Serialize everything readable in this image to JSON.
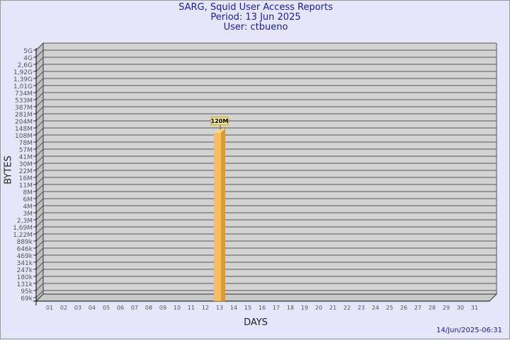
{
  "chart_data": {
    "type": "bar",
    "title": "SARG, Squid User Access Reports",
    "subtitle": [
      "Period: 13 Jun 2025",
      "User: ctbueno"
    ],
    "xlabel": "DAYS",
    "ylabel": "BYTES",
    "scale": "log",
    "grid": true,
    "categories": [
      "01",
      "02",
      "03",
      "04",
      "05",
      "06",
      "07",
      "08",
      "09",
      "10",
      "11",
      "12",
      "13",
      "14",
      "15",
      "16",
      "17",
      "18",
      "19",
      "20",
      "21",
      "22",
      "23",
      "24",
      "25",
      "26",
      "27",
      "28",
      "29",
      "30",
      "31"
    ],
    "yticks": [
      "69k",
      "95k",
      "131k",
      "180k",
      "247k",
      "341k",
      "469k",
      "646k",
      "889k",
      "1,22M",
      "1,69M",
      "2,3M",
      "3M",
      "4M",
      "6M",
      "8M",
      "11M",
      "16M",
      "22M",
      "30M",
      "41M",
      "57M",
      "78M",
      "108M",
      "148M",
      "204M",
      "281M",
      "387M",
      "533M",
      "734M",
      "1,01G",
      "1,39G",
      "1,92G",
      "2,6G",
      "4G",
      "5G"
    ],
    "bars": [
      {
        "category": "13",
        "value": "120M",
        "label": "120M"
      }
    ],
    "colors": {
      "bar": "#f8bd5f",
      "bar_side": "#d99a3a",
      "plot": "#d3d3d3",
      "title": "#1a1aa6"
    }
  },
  "footer": {
    "timestamp": "14/Jun/2025-06:31"
  }
}
